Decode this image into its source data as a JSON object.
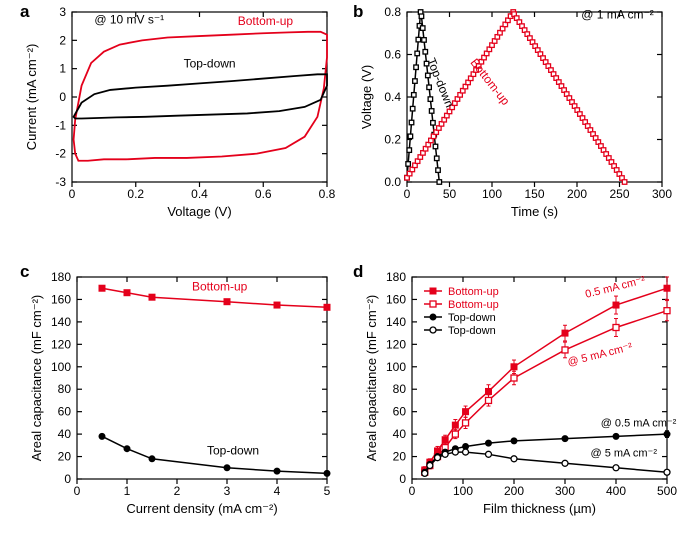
{
  "panel_labels": {
    "a": "a",
    "b": "b",
    "c": "c",
    "d": "d"
  },
  "colors": {
    "red": "#e4001b",
    "black": "#000000",
    "bg": "#ffffff"
  },
  "a": {
    "type": "line",
    "xlabel": "Voltage (V)",
    "ylabel": "Current (mA cm⁻²)",
    "xlim": [
      0.0,
      0.8
    ],
    "ylim": [
      -3,
      3
    ],
    "xticks": [
      0.0,
      0.2,
      0.4,
      0.6,
      0.8
    ],
    "yticks": [
      -3,
      -2,
      -1,
      0,
      1,
      2,
      3
    ],
    "label_fontsize": 13,
    "tick_fontsize": 12,
    "line_width": 1.8,
    "annotation_rate": "@ 10 mV s⁻¹",
    "ann_bottomup": "Bottom-up",
    "ann_topdown": "Top-down",
    "series": {
      "bottomup": {
        "color": "#e4001b",
        "x": [
          0.01,
          0.03,
          0.06,
          0.1,
          0.15,
          0.22,
          0.3,
          0.4,
          0.5,
          0.6,
          0.68,
          0.74,
          0.78,
          0.8,
          0.8,
          0.79,
          0.77,
          0.73,
          0.67,
          0.58,
          0.47,
          0.36,
          0.26,
          0.17,
          0.1,
          0.05,
          0.02,
          0.01,
          0.005,
          0.01
        ],
        "y": [
          -0.8,
          0.4,
          1.2,
          1.6,
          1.85,
          2.0,
          2.1,
          2.15,
          2.2,
          2.25,
          2.28,
          2.3,
          2.3,
          2.2,
          1.4,
          0.3,
          -0.7,
          -1.4,
          -1.8,
          -2.0,
          -2.1,
          -2.15,
          -2.15,
          -2.2,
          -2.2,
          -2.25,
          -2.25,
          -2.0,
          -1.5,
          -0.8
        ]
      },
      "topdown": {
        "color": "#000000",
        "x": [
          0.01,
          0.03,
          0.07,
          0.12,
          0.2,
          0.3,
          0.4,
          0.5,
          0.6,
          0.7,
          0.77,
          0.8,
          0.8,
          0.78,
          0.73,
          0.65,
          0.55,
          0.44,
          0.33,
          0.23,
          0.14,
          0.08,
          0.03,
          0.01,
          0.005,
          0.01
        ],
        "y": [
          -0.6,
          -0.2,
          0.1,
          0.25,
          0.33,
          0.4,
          0.48,
          0.56,
          0.65,
          0.74,
          0.8,
          0.8,
          0.4,
          -0.1,
          -0.35,
          -0.5,
          -0.58,
          -0.62,
          -0.66,
          -0.7,
          -0.72,
          -0.74,
          -0.76,
          -0.76,
          -0.7,
          -0.6
        ]
      }
    }
  },
  "b": {
    "type": "line-markers",
    "xlabel": "Time (s)",
    "ylabel": "Voltage (V)",
    "xlim": [
      0,
      300
    ],
    "ylim": [
      0.0,
      0.8
    ],
    "xticks": [
      0,
      50,
      100,
      150,
      200,
      250,
      300
    ],
    "yticks": [
      0.0,
      0.2,
      0.4,
      0.6,
      0.8
    ],
    "label_fontsize": 13,
    "tick_fontsize": 12,
    "marker": "square-open",
    "marker_size": 4.5,
    "line_width": 1.5,
    "annotation_rate": "@ 1 mA cm⁻²",
    "ann_bottomup": "Bottom-up",
    "ann_topdown": "Top-down",
    "series": {
      "topdown": {
        "color": "#000000",
        "x": [
          0,
          16,
          17,
          38
        ],
        "y": [
          0.02,
          0.8,
          0.78,
          0.0
        ]
      },
      "bottomup": {
        "color": "#e4001b",
        "x": [
          0,
          125,
          126,
          256
        ],
        "y": [
          0.02,
          0.8,
          0.79,
          0.0
        ]
      }
    }
  },
  "c": {
    "type": "line-markers",
    "xlabel": "Current density (mA cm⁻²)",
    "ylabel": "Areal capacitance (mF cm⁻²)",
    "xlim": [
      0,
      5
    ],
    "ylim": [
      0,
      180
    ],
    "xticks": [
      0,
      1,
      2,
      3,
      4,
      5
    ],
    "yticks": [
      0,
      20,
      40,
      60,
      80,
      100,
      120,
      140,
      160,
      180
    ],
    "label_fontsize": 13,
    "tick_fontsize": 12,
    "marker_size": 6,
    "line_width": 1.5,
    "ann_bottomup": "Bottom-up",
    "ann_topdown": "Top-down",
    "series": {
      "bottomup": {
        "color": "#e4001b",
        "marker": "square-filled",
        "x": [
          0.5,
          1.0,
          1.5,
          3.0,
          4.0,
          5.0
        ],
        "y": [
          170,
          166,
          162,
          158,
          155,
          153
        ]
      },
      "topdown": {
        "color": "#000000",
        "marker": "circle-filled",
        "x": [
          0.5,
          1.0,
          1.5,
          3.0,
          4.0,
          5.0
        ],
        "y": [
          38,
          27,
          18,
          10,
          7,
          5
        ]
      }
    }
  },
  "d": {
    "type": "line-markers-errorbars",
    "xlabel": "Film thickness (µm)",
    "ylabel": "Areal capacitance (mF cm⁻²)",
    "xlim": [
      0,
      500
    ],
    "ylim": [
      0,
      180
    ],
    "xticks": [
      0,
      100,
      200,
      300,
      400,
      500
    ],
    "yticks": [
      0,
      20,
      40,
      60,
      80,
      100,
      120,
      140,
      160,
      180
    ],
    "label_fontsize": 13,
    "tick_fontsize": 12,
    "marker_size": 6,
    "line_width": 1.5,
    "error_cap": 4,
    "legend": {
      "items": [
        {
          "label": "Bottom-up",
          "color": "#e4001b",
          "marker": "square-filled"
        },
        {
          "label": "Bottom-up",
          "color": "#e4001b",
          "marker": "square-open"
        },
        {
          "label": "Top-down",
          "color": "#000000",
          "marker": "circle-filled"
        },
        {
          "label": "Top-down",
          "color": "#000000",
          "marker": "circle-open"
        }
      ],
      "fontsize": 11
    },
    "ann_top": "0.5 mA cm⁻²",
    "ann_mid": "@ 5 mA cm⁻²",
    "ann_bk05": "@ 0.5 mA cm⁻²",
    "ann_bk5": "@ 5 mA cm⁻²",
    "series": {
      "bu_05": {
        "color": "#e4001b",
        "marker": "square-filled",
        "x": [
          25,
          35,
          50,
          65,
          85,
          105,
          150,
          200,
          300,
          400,
          500
        ],
        "y": [
          8,
          15,
          25,
          35,
          48,
          60,
          78,
          100,
          130,
          155,
          170
        ],
        "err": [
          3,
          3,
          4,
          4,
          5,
          5,
          6,
          6,
          7,
          8,
          10
        ]
      },
      "bu_5": {
        "color": "#e4001b",
        "marker": "square-open",
        "x": [
          25,
          35,
          50,
          65,
          85,
          105,
          150,
          200,
          300,
          400,
          500
        ],
        "y": [
          6,
          12,
          20,
          28,
          40,
          50,
          70,
          90,
          115,
          135,
          150
        ],
        "err": [
          3,
          3,
          3,
          4,
          4,
          5,
          5,
          6,
          7,
          8,
          9
        ]
      },
      "td_05": {
        "color": "#000000",
        "marker": "circle-filled",
        "x": [
          25,
          35,
          50,
          65,
          85,
          105,
          150,
          200,
          300,
          400,
          500
        ],
        "y": [
          6,
          13,
          20,
          24,
          27,
          29,
          32,
          34,
          36,
          38,
          40
        ],
        "err": [
          2,
          2,
          2,
          2,
          2,
          2,
          2,
          2,
          2,
          2,
          3
        ]
      },
      "td_5": {
        "color": "#000000",
        "marker": "circle-open",
        "x": [
          25,
          35,
          50,
          65,
          85,
          105,
          150,
          200,
          300,
          400,
          500
        ],
        "y": [
          5,
          12,
          19,
          22,
          24,
          24,
          22,
          18,
          14,
          10,
          6
        ],
        "err": [
          2,
          2,
          2,
          2,
          2,
          2,
          2,
          2,
          2,
          2,
          2
        ]
      }
    }
  }
}
